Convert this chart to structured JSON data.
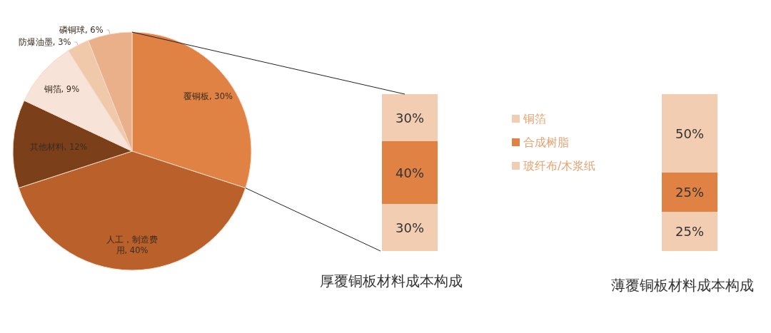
{
  "chart_data": [
    {
      "type": "pie",
      "categories": [
        "覆铜板",
        "人工，制造费用",
        "其他材料",
        "铜箔",
        "防爆油墨",
        "磷铜球"
      ],
      "values": [
        30,
        40,
        12,
        9,
        3,
        6
      ],
      "colors": [
        "#e08244",
        "#b9602b",
        "#7b3f1a",
        "#f7e3d7",
        "#f0c9ab",
        "#e9b089"
      ],
      "value_labels": [
        "30%",
        "40%",
        "12%",
        "9%",
        "3%",
        "6%"
      ]
    },
    {
      "type": "bar",
      "title": "厚覆铜板材料成本构成",
      "categories": [
        null
      ],
      "stacked": true,
      "legend": "right",
      "tick_labels": false,
      "series": [
        {
          "name": "玻纤布/木浆纸",
          "color": "#f2cdb1",
          "values": [
            30
          ],
          "value_labels": [
            "30%"
          ]
        },
        {
          "name": "合成树脂",
          "color": "#e08244",
          "values": [
            40
          ],
          "value_labels": [
            "40%"
          ]
        },
        {
          "name": "铜箔",
          "color": "#f2cdb1",
          "values": [
            30
          ],
          "value_labels": [
            "30%"
          ]
        }
      ]
    },
    {
      "type": "bar",
      "title": "薄覆铜板材料成本构成",
      "categories": [
        null
      ],
      "stacked": true,
      "tick_labels": false,
      "series": [
        {
          "color": "#f2cdb1",
          "values": [
            25
          ],
          "value_labels": [
            "25%"
          ]
        },
        {
          "color": "#e08244",
          "values": [
            25
          ],
          "value_labels": [
            "25%"
          ]
        },
        {
          "color": "#f2cdb1",
          "values": [
            50
          ],
          "value_labels": [
            "50%"
          ]
        }
      ]
    }
  ]
}
